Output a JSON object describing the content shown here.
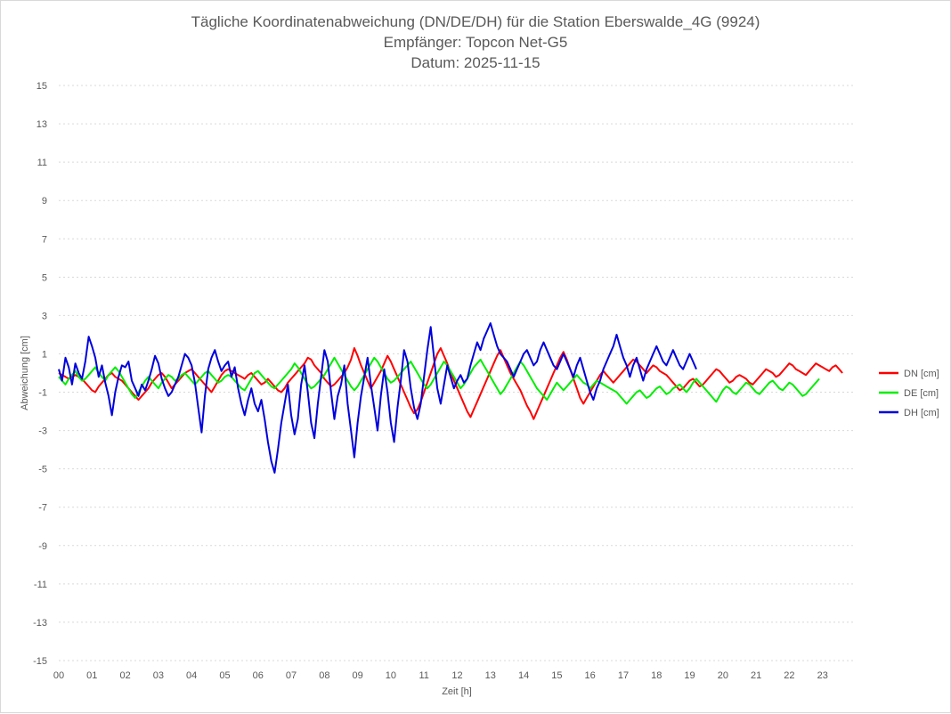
{
  "chart_data": {
    "type": "line",
    "title": [
      "Tägliche Koordinatenabweichung (DN/DE/DH) für die Station Eberswalde_4G (9924)",
      "Empfänger: Topcon Net-G5",
      "Datum: 2025-11-15"
    ],
    "xlabel": "Zeit [h]",
    "ylabel": "Abweichung [cm]",
    "xlim": [
      0,
      24
    ],
    "ylim": [
      -15,
      15
    ],
    "x_ticks": [
      "00",
      "01",
      "02",
      "03",
      "04",
      "05",
      "06",
      "07",
      "08",
      "09",
      "10",
      "11",
      "12",
      "13",
      "14",
      "15",
      "16",
      "17",
      "18",
      "19",
      "20",
      "21",
      "22",
      "23"
    ],
    "y_ticks": [
      15,
      13,
      11,
      9,
      7,
      5,
      3,
      1,
      -1,
      -3,
      -5,
      -7,
      -9,
      -11,
      -13,
      -15
    ],
    "grid": "horizontal-dotted",
    "legend_position": "right",
    "sample_interval_h": 0.1,
    "series": [
      {
        "name": "DN [cm]",
        "color": "#ff0000",
        "values": [
          0,
          -0.1,
          -0.2,
          -0.3,
          -0.2,
          -0.1,
          -0.2,
          -0.3,
          -0.5,
          -0.7,
          -0.9,
          -1.0,
          -0.7,
          -0.5,
          -0.3,
          -0.1,
          0,
          -0.2,
          -0.3,
          -0.4,
          -0.6,
          -0.8,
          -1.0,
          -1.2,
          -1.4,
          -1.2,
          -1.0,
          -0.8,
          -0.5,
          -0.3,
          -0.1,
          0,
          -0.2,
          -0.5,
          -0.8,
          -0.6,
          -0.4,
          -0.2,
          0,
          0.1,
          0.2,
          0,
          -0.2,
          -0.4,
          -0.6,
          -0.8,
          -1.0,
          -0.7,
          -0.4,
          -0.1,
          0.1,
          0.2,
          0.1,
          0,
          -0.1,
          -0.2,
          -0.3,
          -0.1,
          0,
          -0.2,
          -0.4,
          -0.6,
          -0.5,
          -0.3,
          -0.5,
          -0.7,
          -0.9,
          -1.0,
          -0.8,
          -0.5,
          -0.3,
          -0.1,
          0.1,
          0.3,
          0.5,
          0.8,
          0.7,
          0.4,
          0.2,
          0,
          -0.3,
          -0.5,
          -0.7,
          -0.6,
          -0.4,
          -0.2,
          0,
          0.3,
          0.7,
          1.3,
          0.9,
          0.4,
          0,
          -0.4,
          -0.8,
          -0.5,
          -0.2,
          0.1,
          0.5,
          0.9,
          0.6,
          0.2,
          -0.2,
          -0.6,
          -1.0,
          -1.4,
          -1.8,
          -2.1,
          -1.9,
          -1.5,
          -1.0,
          -0.5,
          0,
          0.5,
          1.0,
          1.3,
          0.9,
          0.5,
          0,
          -0.4,
          -0.8,
          -1.2,
          -1.6,
          -2.0,
          -2.3,
          -1.9,
          -1.5,
          -1.1,
          -0.7,
          -0.3,
          0.1,
          0.5,
          0.9,
          1.2,
          0.8,
          0.4,
          0,
          -0.3,
          -0.6,
          -0.9,
          -1.3,
          -1.7,
          -2.0,
          -2.4,
          -2.0,
          -1.6,
          -1.2,
          -0.8,
          -0.4,
          0,
          0.4,
          0.8,
          1.1,
          0.7,
          0.2,
          -0.3,
          -0.8,
          -1.3,
          -1.6,
          -1.3,
          -1.0,
          -0.7,
          -0.4,
          -0.1,
          0.1,
          -0.1,
          -0.3,
          -0.5,
          -0.3,
          -0.1,
          0.1,
          0.3,
          0.5,
          0.7,
          0.6,
          0.4,
          0.2,
          0,
          0.2,
          0.4,
          0.3,
          0.1,
          0,
          -0.1,
          -0.3,
          -0.5,
          -0.7,
          -0.9,
          -0.8,
          -0.6,
          -0.4,
          -0.3,
          -0.5,
          -0.7,
          -0.6,
          -0.4,
          -0.2,
          0,
          0.2,
          0.1,
          -0.1,
          -0.3,
          -0.5,
          -0.4,
          -0.2,
          -0.1,
          -0.2,
          -0.3,
          -0.5,
          -0.6,
          -0.4,
          -0.2,
          0,
          0.2,
          0.1,
          0,
          -0.2,
          -0.1,
          0.1,
          0.3,
          0.5,
          0.4,
          0.2,
          0.1,
          0,
          -0.1,
          0.1,
          0.3,
          0.5,
          0.4,
          0.3,
          0.2,
          0.1,
          0.3,
          0.4,
          0.2,
          0
        ],
        "stroke_width": 2.0
      },
      {
        "name": "DE [cm]",
        "color": "#00ee00",
        "values": [
          -0.2,
          -0.4,
          -0.6,
          -0.3,
          -0.1,
          0.1,
          -0.2,
          -0.4,
          -0.3,
          -0.1,
          0.1,
          0.3,
          0,
          -0.2,
          -0.4,
          -0.1,
          0.1,
          0.3,
          0.1,
          -0.2,
          -0.5,
          -0.8,
          -1.1,
          -1.3,
          -1.0,
          -0.7,
          -0.4,
          -0.2,
          -0.4,
          -0.6,
          -0.8,
          -0.5,
          -0.3,
          -0.1,
          -0.2,
          -0.4,
          -0.3,
          -0.1,
          0,
          -0.2,
          -0.4,
          -0.6,
          -0.4,
          -0.2,
          0,
          0.1,
          -0.1,
          -0.3,
          -0.5,
          -0.4,
          -0.2,
          -0.1,
          -0.2,
          -0.4,
          -0.6,
          -0.8,
          -0.9,
          -0.6,
          -0.3,
          0,
          0.1,
          -0.1,
          -0.3,
          -0.5,
          -0.7,
          -0.8,
          -0.6,
          -0.4,
          -0.2,
          0,
          0.2,
          0.5,
          0.3,
          0,
          -0.3,
          -0.6,
          -0.8,
          -0.7,
          -0.5,
          -0.3,
          -0.1,
          0.2,
          0.5,
          0.8,
          0.5,
          0.2,
          -0.1,
          -0.4,
          -0.7,
          -0.9,
          -0.7,
          -0.4,
          -0.1,
          0.2,
          0.5,
          0.8,
          0.6,
          0.3,
          0,
          -0.3,
          -0.5,
          -0.4,
          -0.2,
          0,
          0.2,
          0.4,
          0.6,
          0.3,
          0,
          -0.3,
          -0.6,
          -0.8,
          -0.6,
          -0.3,
          0,
          0.3,
          0.6,
          0.4,
          0.1,
          -0.2,
          -0.5,
          -0.8,
          -0.6,
          -0.3,
          0,
          0.3,
          0.5,
          0.7,
          0.4,
          0.1,
          -0.2,
          -0.5,
          -0.8,
          -1.1,
          -0.9,
          -0.6,
          -0.3,
          0,
          0.3,
          0.6,
          0.4,
          0.1,
          -0.2,
          -0.5,
          -0.8,
          -1.0,
          -1.2,
          -1.4,
          -1.1,
          -0.8,
          -0.5,
          -0.7,
          -0.9,
          -0.7,
          -0.5,
          -0.3,
          -0.1,
          -0.3,
          -0.5,
          -0.6,
          -0.8,
          -0.6,
          -0.4,
          -0.5,
          -0.6,
          -0.7,
          -0.8,
          -0.9,
          -1.0,
          -1.2,
          -1.4,
          -1.6,
          -1.4,
          -1.2,
          -1.0,
          -0.9,
          -1.1,
          -1.3,
          -1.2,
          -1.0,
          -0.8,
          -0.7,
          -0.9,
          -1.1,
          -1.0,
          -0.8,
          -0.7,
          -0.6,
          -0.8,
          -1.0,
          -0.8,
          -0.5,
          -0.3,
          -0.5,
          -0.7,
          -0.9,
          -1.1,
          -1.3,
          -1.5,
          -1.2,
          -0.9,
          -0.7,
          -0.8,
          -1.0,
          -1.1,
          -0.9,
          -0.7,
          -0.5,
          -0.6,
          -0.8,
          -1.0,
          -1.1,
          -0.9,
          -0.7,
          -0.5,
          -0.4,
          -0.6,
          -0.8,
          -0.9,
          -0.7,
          -0.5,
          -0.6,
          -0.8,
          -1.0,
          -1.2,
          -1.1,
          -0.9,
          -0.7,
          -0.5,
          -0.3
        ],
        "stroke_width": 2.0
      },
      {
        "name": "DH [cm]",
        "color": "#0000dd",
        "values": [
          0.2,
          -0.4,
          0.8,
          0.3,
          -0.6,
          0.5,
          0,
          -0.3,
          0.6,
          1.9,
          1.4,
          0.8,
          -0.2,
          0.4,
          -0.5,
          -1.2,
          -2.2,
          -1.0,
          -0.2,
          0.4,
          0.3,
          0.6,
          -0.4,
          -0.8,
          -1.2,
          -0.6,
          -0.9,
          -0.4,
          0.2,
          0.9,
          0.5,
          -0.3,
          -0.8,
          -1.2,
          -1.0,
          -0.6,
          -0.2,
          0.4,
          1.0,
          0.8,
          0.4,
          -0.5,
          -1.8,
          -3.1,
          -1.2,
          0.2,
          0.8,
          1.2,
          0.6,
          0.1,
          0.4,
          0.6,
          -0.2,
          0.3,
          -0.8,
          -1.6,
          -2.2,
          -1.4,
          -0.8,
          -1.6,
          -2.0,
          -1.4,
          -2.4,
          -3.6,
          -4.6,
          -5.2,
          -4.0,
          -2.6,
          -1.6,
          -0.6,
          -2.2,
          -3.2,
          -2.4,
          -0.6,
          0.4,
          -1.0,
          -2.6,
          -3.4,
          -1.6,
          -0.2,
          1.2,
          0.6,
          -1.0,
          -2.4,
          -1.2,
          -0.6,
          0.4,
          -1.6,
          -3.0,
          -4.4,
          -2.6,
          -1.2,
          -0.2,
          0.8,
          -0.6,
          -1.8,
          -3.0,
          -1.2,
          0.2,
          -1.0,
          -2.6,
          -3.6,
          -1.8,
          -0.4,
          1.2,
          0.6,
          -0.8,
          -1.8,
          -2.4,
          -1.6,
          -0.2,
          1.2,
          2.4,
          0.8,
          -0.8,
          -1.6,
          -0.6,
          0.4,
          -0.2,
          -0.8,
          -0.4,
          -0.1,
          -0.5,
          -0.3,
          0.4,
          1.0,
          1.6,
          1.2,
          1.8,
          2.2,
          2.6,
          2.0,
          1.4,
          1.0,
          0.8,
          0.6,
          0.2,
          -0.2,
          0.2,
          0.6,
          1.0,
          1.2,
          0.8,
          0.4,
          0.6,
          1.2,
          1.6,
          1.2,
          0.8,
          0.4,
          0.2,
          0.6,
          1.0,
          0.6,
          0.2,
          -0.2,
          0.4,
          0.8,
          0.2,
          -0.4,
          -1.0,
          -1.4,
          -0.8,
          -0.4,
          0.2,
          0.6,
          1.0,
          1.4,
          2.0,
          1.4,
          0.8,
          0.4,
          -0.2,
          0.4,
          0.8,
          0.2,
          -0.4,
          0.2,
          0.6,
          1.0,
          1.4,
          1.0,
          0.6,
          0.4,
          0.8,
          1.2,
          0.8,
          0.4,
          0.2,
          0.6,
          1.0,
          0.6,
          0.2
        ],
        "stroke_width": 2.0
      }
    ]
  }
}
